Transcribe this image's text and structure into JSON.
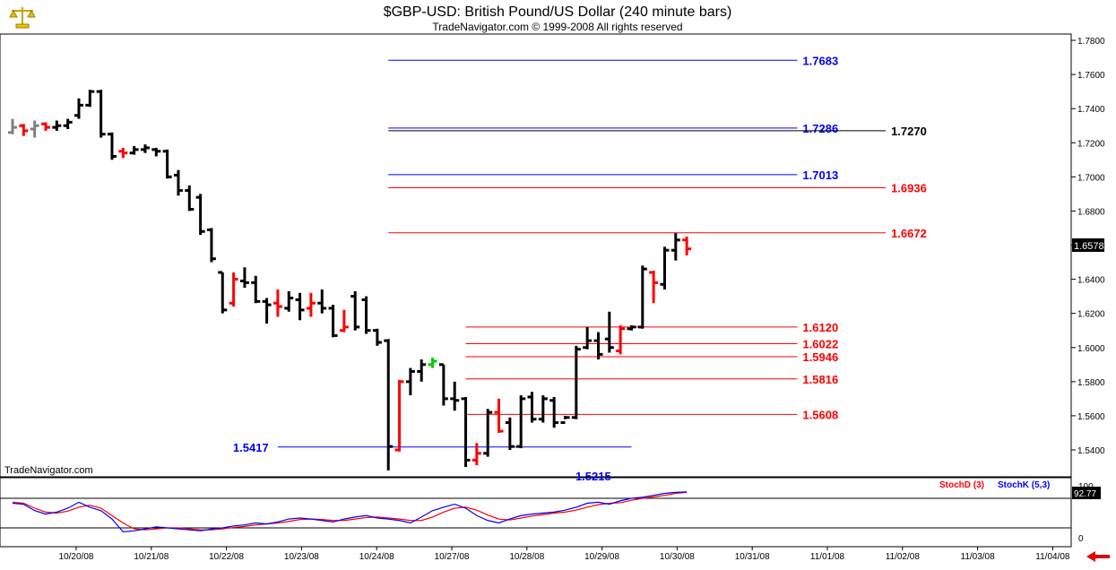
{
  "header": {
    "title": "$GBP-USD:  British Pound/US Dollar  (240 minute bars)",
    "subtitle": "TradeNavigator.com © 1999-2008 All rights reserved",
    "logo_icon": "gold-scales-logo-icon"
  },
  "watermark": "TradeNavigator.com",
  "colors": {
    "up_bar": "#000000",
    "down_bar": "#ff0000",
    "pivot_bar_gray": "#808080",
    "pivot_bar_green": "#00cc00",
    "blue_level": "#0000ff",
    "red_level": "#ff0000",
    "black_level": "#000000",
    "stoch_d": "#ff0000",
    "stoch_k": "#0000ff",
    "price_badge_bg": "#000000"
  },
  "chart_data": {
    "type": "bar",
    "price_axis": {
      "ylim": [
        1.522,
        1.7846
      ],
      "ticks": [
        "1.5400",
        "1.5600",
        "1.5800",
        "1.6000",
        "1.6200",
        "1.6400",
        "1.6600",
        "1.6800",
        "1.7000",
        "1.7200",
        "1.7400",
        "1.7600",
        "1.7800"
      ],
      "tick_values": [
        1.54,
        1.56,
        1.58,
        1.6,
        1.62,
        1.64,
        1.66,
        1.68,
        1.7,
        1.72,
        1.74,
        1.76,
        1.78
      ]
    },
    "last_price": "1.6578",
    "date_axis": {
      "labels": [
        "10/20/08",
        "10/21/08",
        "10/22/08",
        "10/23/08",
        "10/24/08",
        "10/27/08",
        "10/28/08",
        "10/29/08",
        "10/30/08",
        "10/31/08",
        "11/01/08",
        "11/02/08",
        "11/03/08",
        "11/04/08"
      ]
    },
    "bars": [
      {
        "i": 0,
        "open": 1.726,
        "high": 1.734,
        "low": 1.725,
        "close": 1.729,
        "color": "gray"
      },
      {
        "i": 1,
        "open": 1.73,
        "high": 1.731,
        "low": 1.724,
        "close": 1.727,
        "color": "red"
      },
      {
        "i": 2,
        "open": 1.728,
        "high": 1.733,
        "low": 1.723,
        "close": 1.73,
        "color": "gray"
      },
      {
        "i": 3,
        "open": 1.731,
        "high": 1.732,
        "low": 1.727,
        "close": 1.729,
        "color": "red"
      },
      {
        "i": 4,
        "open": 1.729,
        "high": 1.733,
        "low": 1.727,
        "close": 1.73,
        "color": "black"
      },
      {
        "i": 5,
        "open": 1.73,
        "high": 1.734,
        "low": 1.728,
        "close": 1.732,
        "color": "black"
      },
      {
        "i": 6,
        "open": 1.736,
        "high": 1.746,
        "low": 1.734,
        "close": 1.742,
        "color": "black"
      },
      {
        "i": 7,
        "open": 1.742,
        "high": 1.751,
        "low": 1.741,
        "close": 1.75,
        "color": "black"
      },
      {
        "i": 8,
        "open": 1.75,
        "high": 1.751,
        "low": 1.723,
        "close": 1.725,
        "color": "black"
      },
      {
        "i": 9,
        "open": 1.725,
        "high": 1.726,
        "low": 1.71,
        "close": 1.712,
        "color": "black"
      },
      {
        "i": 10,
        "open": 1.715,
        "high": 1.717,
        "low": 1.711,
        "close": 1.714,
        "color": "red"
      },
      {
        "i": 11,
        "open": 1.714,
        "high": 1.718,
        "low": 1.713,
        "close": 1.716,
        "color": "black"
      },
      {
        "i": 12,
        "open": 1.716,
        "high": 1.719,
        "low": 1.714,
        "close": 1.717,
        "color": "black"
      },
      {
        "i": 13,
        "open": 1.716,
        "high": 1.717,
        "low": 1.712,
        "close": 1.715,
        "color": "black"
      },
      {
        "i": 14,
        "open": 1.715,
        "high": 1.716,
        "low": 1.699,
        "close": 1.7,
        "color": "black"
      },
      {
        "i": 15,
        "open": 1.701,
        "high": 1.704,
        "low": 1.689,
        "close": 1.692,
        "color": "black"
      },
      {
        "i": 16,
        "open": 1.692,
        "high": 1.695,
        "low": 1.68,
        "close": 1.681,
        "color": "black"
      },
      {
        "i": 17,
        "open": 1.688,
        "high": 1.69,
        "low": 1.666,
        "close": 1.668,
        "color": "black"
      },
      {
        "i": 18,
        "open": 1.669,
        "high": 1.67,
        "low": 1.65,
        "close": 1.652,
        "color": "black"
      },
      {
        "i": 19,
        "open": 1.644,
        "high": 1.644,
        "low": 1.62,
        "close": 1.622,
        "color": "black"
      },
      {
        "i": 20,
        "open": 1.626,
        "high": 1.644,
        "low": 1.624,
        "close": 1.64,
        "color": "red"
      },
      {
        "i": 21,
        "open": 1.639,
        "high": 1.647,
        "low": 1.635,
        "close": 1.638,
        "color": "black"
      },
      {
        "i": 22,
        "open": 1.638,
        "high": 1.642,
        "low": 1.626,
        "close": 1.627,
        "color": "black"
      },
      {
        "i": 23,
        "open": 1.627,
        "high": 1.629,
        "low": 1.614,
        "close": 1.625,
        "color": "black"
      },
      {
        "i": 24,
        "open": 1.626,
        "high": 1.634,
        "low": 1.618,
        "close": 1.624,
        "color": "red"
      },
      {
        "i": 25,
        "open": 1.623,
        "high": 1.633,
        "low": 1.621,
        "close": 1.629,
        "color": "black"
      },
      {
        "i": 26,
        "open": 1.628,
        "high": 1.632,
        "low": 1.616,
        "close": 1.622,
        "color": "black"
      },
      {
        "i": 27,
        "open": 1.623,
        "high": 1.632,
        "low": 1.618,
        "close": 1.626,
        "color": "red"
      },
      {
        "i": 28,
        "open": 1.626,
        "high": 1.634,
        "low": 1.62,
        "close": 1.623,
        "color": "black"
      },
      {
        "i": 29,
        "open": 1.623,
        "high": 1.625,
        "low": 1.606,
        "close": 1.607,
        "color": "black"
      },
      {
        "i": 30,
        "open": 1.61,
        "high": 1.622,
        "low": 1.609,
        "close": 1.612,
        "color": "red"
      },
      {
        "i": 31,
        "open": 1.63,
        "high": 1.633,
        "low": 1.61,
        "close": 1.612,
        "color": "black"
      },
      {
        "i": 32,
        "open": 1.628,
        "high": 1.63,
        "low": 1.608,
        "close": 1.61,
        "color": "black"
      },
      {
        "i": 33,
        "open": 1.61,
        "high": 1.611,
        "low": 1.601,
        "close": 1.603,
        "color": "black"
      },
      {
        "i": 34,
        "open": 1.604,
        "high": 1.605,
        "low": 1.528,
        "close": 1.542,
        "color": "black"
      },
      {
        "i": 35,
        "open": 1.54,
        "high": 1.581,
        "low": 1.539,
        "close": 1.58,
        "color": "red"
      },
      {
        "i": 36,
        "open": 1.58,
        "high": 1.588,
        "low": 1.572,
        "close": 1.586,
        "color": "black"
      },
      {
        "i": 37,
        "open": 1.586,
        "high": 1.593,
        "low": 1.58,
        "close": 1.59,
        "color": "black"
      },
      {
        "i": 38,
        "open": 1.59,
        "high": 1.594,
        "low": 1.588,
        "close": 1.592,
        "color": "green"
      },
      {
        "i": 39,
        "open": 1.59,
        "high": 1.59,
        "low": 1.566,
        "close": 1.57,
        "color": "black"
      },
      {
        "i": 40,
        "open": 1.57,
        "high": 1.58,
        "low": 1.563,
        "close": 1.569,
        "color": "black"
      },
      {
        "i": 41,
        "open": 1.57,
        "high": 1.571,
        "low": 1.53,
        "close": 1.534,
        "color": "black"
      },
      {
        "i": 42,
        "open": 1.534,
        "high": 1.544,
        "low": 1.531,
        "close": 1.538,
        "color": "red"
      },
      {
        "i": 43,
        "open": 1.538,
        "high": 1.564,
        "low": 1.536,
        "close": 1.562,
        "color": "black"
      },
      {
        "i": 44,
        "open": 1.562,
        "high": 1.57,
        "low": 1.55,
        "close": 1.551,
        "color": "red"
      },
      {
        "i": 45,
        "open": 1.556,
        "high": 1.559,
        "low": 1.54,
        "close": 1.542,
        "color": "black"
      },
      {
        "i": 46,
        "open": 1.542,
        "high": 1.572,
        "low": 1.541,
        "close": 1.57,
        "color": "black"
      },
      {
        "i": 47,
        "open": 1.571,
        "high": 1.574,
        "low": 1.556,
        "close": 1.558,
        "color": "black"
      },
      {
        "i": 48,
        "open": 1.558,
        "high": 1.572,
        "low": 1.556,
        "close": 1.57,
        "color": "black"
      },
      {
        "i": 49,
        "open": 1.569,
        "high": 1.571,
        "low": 1.553,
        "close": 1.556,
        "color": "black"
      },
      {
        "i": 50,
        "open": 1.556,
        "high": 1.56,
        "low": 1.558,
        "close": 1.559,
        "color": "black"
      },
      {
        "i": 51,
        "open": 1.559,
        "high": 1.601,
        "low": 1.558,
        "close": 1.599,
        "color": "black"
      },
      {
        "i": 52,
        "open": 1.6,
        "high": 1.612,
        "low": 1.599,
        "close": 1.604,
        "color": "black"
      },
      {
        "i": 53,
        "open": 1.604,
        "high": 1.609,
        "low": 1.593,
        "close": 1.596,
        "color": "black"
      },
      {
        "i": 54,
        "open": 1.605,
        "high": 1.621,
        "low": 1.597,
        "close": 1.6,
        "color": "black"
      },
      {
        "i": 55,
        "open": 1.598,
        "high": 1.613,
        "low": 1.596,
        "close": 1.611,
        "color": "red"
      },
      {
        "i": 56,
        "open": 1.611,
        "high": 1.613,
        "low": 1.61,
        "close": 1.612,
        "color": "black"
      },
      {
        "i": 57,
        "open": 1.612,
        "high": 1.648,
        "low": 1.611,
        "close": 1.646,
        "color": "black"
      },
      {
        "i": 58,
        "open": 1.644,
        "high": 1.645,
        "low": 1.626,
        "close": 1.638,
        "color": "red"
      },
      {
        "i": 59,
        "open": 1.637,
        "high": 1.659,
        "low": 1.634,
        "close": 1.657,
        "color": "black"
      },
      {
        "i": 60,
        "open": 1.657,
        "high": 1.667,
        "low": 1.651,
        "close": 1.663,
        "color": "black"
      },
      {
        "i": 61,
        "open": 1.663,
        "high": 1.665,
        "low": 1.654,
        "close": 1.6578,
        "color": "red"
      }
    ],
    "levels": [
      {
        "value": 1.7683,
        "label": "1.7683",
        "color": "blue",
        "x_from": 34,
        "x_to": 71,
        "label_side": "right"
      },
      {
        "value": 1.7286,
        "label": "1.7286",
        "color": "blue",
        "x_from": 34,
        "x_to": 71,
        "label_side": "right"
      },
      {
        "value": 1.727,
        "label": "1.7270",
        "color": "black",
        "x_from": 34,
        "x_to": 79,
        "label_side": "right-far"
      },
      {
        "value": 1.7013,
        "label": "1.7013",
        "color": "blue",
        "x_from": 34,
        "x_to": 71,
        "label_side": "right"
      },
      {
        "value": 1.6936,
        "label": "1.6936",
        "color": "red",
        "x_from": 34,
        "x_to": 79,
        "label_side": "right-far"
      },
      {
        "value": 1.6672,
        "label": "1.6672",
        "color": "red",
        "x_from": 34,
        "x_to": 79,
        "label_side": "right-far"
      },
      {
        "value": 1.612,
        "label": "1.6120",
        "color": "red",
        "x_from": 41,
        "x_to": 71,
        "label_side": "right"
      },
      {
        "value": 1.6022,
        "label": "1.6022",
        "color": "red",
        "x_from": 41,
        "x_to": 71,
        "label_side": "right"
      },
      {
        "value": 1.5946,
        "label": "1.5946",
        "color": "red",
        "x_from": 41,
        "x_to": 71,
        "label_side": "right"
      },
      {
        "value": 1.5816,
        "label": "1.5816",
        "color": "red",
        "x_from": 41,
        "x_to": 71,
        "label_side": "right"
      },
      {
        "value": 1.5608,
        "label": "1.5608",
        "color": "red",
        "x_from": 41,
        "x_to": 71,
        "label_side": "right"
      },
      {
        "value": 1.5417,
        "label": "1.5417",
        "color": "blue",
        "x_from": 24,
        "x_to": 56,
        "label_side": "left"
      },
      {
        "value": 1.5215,
        "label": "1.5215",
        "color": "blue",
        "x_from": 48,
        "x_to": 48,
        "label_side": "center-clipped"
      }
    ],
    "stochastic": {
      "legend_d": "StochD (3)",
      "legend_k": "StochK (5,3)",
      "axis_top": "100",
      "axis_zero": "0",
      "current": "92.77",
      "ylim": [
        0,
        100
      ],
      "levels": [
        80,
        20
      ],
      "k": [
        70,
        68,
        55,
        48,
        52,
        60,
        72,
        62,
        55,
        38,
        12,
        14,
        18,
        22,
        20,
        18,
        16,
        14,
        18,
        20,
        24,
        26,
        30,
        28,
        32,
        38,
        40,
        38,
        35,
        32,
        38,
        42,
        45,
        40,
        38,
        35,
        30,
        42,
        55,
        62,
        68,
        60,
        45,
        35,
        30,
        38,
        45,
        48,
        50,
        52,
        56,
        62,
        70,
        72,
        68,
        75,
        80,
        82,
        86,
        90,
        92,
        93
      ],
      "d": [
        72,
        70,
        60,
        52,
        50,
        54,
        62,
        66,
        60,
        45,
        30,
        18,
        16,
        18,
        20,
        20,
        18,
        16,
        16,
        18,
        21,
        23,
        26,
        28,
        30,
        33,
        37,
        38,
        37,
        35,
        35,
        38,
        41,
        42,
        40,
        38,
        35,
        35,
        42,
        52,
        60,
        62,
        56,
        46,
        38,
        36,
        40,
        44,
        47,
        50,
        52,
        56,
        62,
        67,
        70,
        71,
        76,
        80,
        83,
        86,
        90,
        92
      ]
    }
  }
}
